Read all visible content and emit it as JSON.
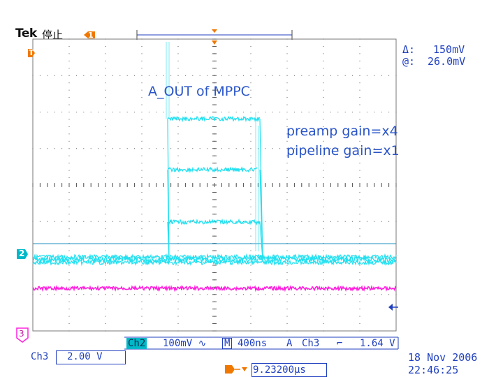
{
  "header": {
    "brand": "Tek",
    "state": "停止"
  },
  "readout": {
    "delta_label": "Δ:",
    "delta_value": "150mV",
    "at_label": "@:",
    "at_value": "26.0mV"
  },
  "annotations": {
    "signal": "A_OUT of MPPC",
    "preamp": "preamp gain=x4",
    "pipeline": "pipeline gain=x1"
  },
  "markers": {
    "trigger": "T",
    "ch1": "1",
    "ch2": "2",
    "ch3": "3"
  },
  "status": {
    "ch2_tag": "Ch2",
    "ch2_scale": "100mV",
    "ch2_coupling": "∿",
    "mode": "M",
    "timebase": "400ns",
    "trig_label": "A",
    "trig_source": "Ch3",
    "trig_slope": "⌐",
    "trig_level": "1.64 V",
    "ch3_label": "Ch3",
    "ch3_scale": "2.00 V",
    "trig_pos_marker": "T→▾",
    "trig_pos": "9.23200μs",
    "date": "18 Nov 2006",
    "time": "22:46:25"
  },
  "colors": {
    "ch2": "#22e0f0",
    "ch3": "#ff22dd",
    "grid": "#555555",
    "accent": "#f07800"
  }
}
